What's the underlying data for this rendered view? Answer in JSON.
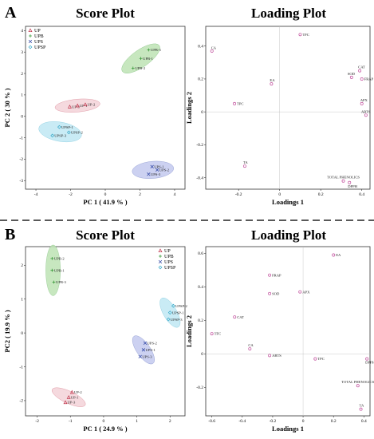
{
  "colors": {
    "UP": "#c0334a",
    "UPB": "#3a9a3a",
    "UPS": "#3a4fa8",
    "UPSP": "#35a8c8",
    "UP_fill": "#f3d2d8",
    "UPB_fill": "#bde3b4",
    "UPS_fill": "#c3c9ee",
    "UPSP_fill": "#bfe8f3",
    "loading_marker": "#c04a9a",
    "divider": "#222222"
  },
  "panel_A": {
    "letter": "A"
  },
  "panel_B": {
    "letter": "B"
  },
  "chart_data": [
    {
      "id": "A_score",
      "type": "scatter",
      "title": "Score Plot",
      "xlabel": "PC 1 ( 41.9 % )",
      "ylabel": "PC 2 ( 30 % )",
      "xlim": [
        -4.6,
        4.6
      ],
      "ylim": [
        -3.4,
        4.2
      ],
      "xticks": [
        -4,
        -2,
        0,
        2,
        4
      ],
      "yticks": [
        -3,
        -2,
        -1,
        0,
        1,
        2,
        3,
        4
      ],
      "legend": [
        "UP",
        "UPB",
        "UPS",
        "UPSP"
      ],
      "legend_position": "top-left",
      "series": [
        {
          "name": "UP",
          "points": [
            {
              "label": "UP-3",
              "x": -2.05,
              "y": 0.45
            },
            {
              "label": "UP-1",
              "x": -1.6,
              "y": 0.5
            },
            {
              "label": "UP-2",
              "x": -1.15,
              "y": 0.55
            }
          ],
          "ellipse": {
            "cx": -1.6,
            "cy": 0.5,
            "rx": 1.3,
            "ry": 0.3,
            "angle": 5
          }
        },
        {
          "name": "UPB",
          "points": [
            {
              "label": "UPB-3",
              "x": 2.5,
              "y": 3.1
            },
            {
              "label": "UPB-1",
              "x": 2.05,
              "y": 2.7
            },
            {
              "label": "UPB-2",
              "x": 1.6,
              "y": 2.25
            }
          ],
          "ellipse": {
            "cx": 2.05,
            "cy": 2.7,
            "rx": 1.3,
            "ry": 0.4,
            "angle": 35
          }
        },
        {
          "name": "UPS",
          "points": [
            {
              "label": "UPS-1",
              "x": 2.7,
              "y": -2.35
            },
            {
              "label": "UPS-2",
              "x": 3.0,
              "y": -2.5
            },
            {
              "label": "UPS-3",
              "x": 2.5,
              "y": -2.7
            }
          ],
          "ellipse": {
            "cx": 2.75,
            "cy": -2.5,
            "rx": 1.2,
            "ry": 0.4,
            "angle": 5
          }
        },
        {
          "name": "UPSP",
          "points": [
            {
              "label": "UPSP-1",
              "x": -2.65,
              "y": -0.5
            },
            {
              "label": "UPSP-2",
              "x": -2.1,
              "y": -0.75
            },
            {
              "label": "UPSP-3",
              "x": -3.05,
              "y": -0.9
            }
          ],
          "ellipse": {
            "cx": -2.6,
            "cy": -0.72,
            "rx": 1.25,
            "ry": 0.45,
            "angle": -10
          }
        }
      ]
    },
    {
      "id": "A_loading",
      "type": "scatter",
      "title": "Loading Plot",
      "xlabel": "Loadings 1",
      "ylabel": "Loadings 2",
      "xlim": [
        -0.36,
        0.44
      ],
      "ylim": [
        -0.47,
        0.52
      ],
      "xticks": [
        -0.2,
        0.0,
        0.2,
        0.4
      ],
      "yticks": [
        -0.4,
        -0.2,
        0.0,
        0.2,
        0.4
      ],
      "points": [
        {
          "label": "TFC",
          "x": 0.1,
          "y": 0.47
        },
        {
          "label": "CA",
          "x": -0.33,
          "y": 0.37
        },
        {
          "label": "CAT",
          "x": 0.39,
          "y": 0.25
        },
        {
          "label": "SOD",
          "x": 0.35,
          "y": 0.21
        },
        {
          "label": "FRAP",
          "x": 0.4,
          "y": 0.2
        },
        {
          "label": "EA",
          "x": -0.04,
          "y": 0.17
        },
        {
          "label": "TPC",
          "x": -0.22,
          "y": 0.05
        },
        {
          "label": "APX",
          "x": 0.4,
          "y": 0.05
        },
        {
          "label": "ABTS",
          "x": 0.42,
          "y": -0.02
        },
        {
          "label": "TA",
          "x": -0.17,
          "y": -0.33
        },
        {
          "label": "TOTAL PHENOLICS",
          "x": 0.31,
          "y": -0.42
        },
        {
          "label": "DPPH",
          "x": 0.34,
          "y": -0.43
        }
      ]
    },
    {
      "id": "B_score",
      "type": "scatter",
      "title": "Score Plot",
      "xlabel": "PC 1 ( 24.9 % )",
      "ylabel": "PC2 ( 19.9 % )",
      "xlim": [
        -2.35,
        2.45
      ],
      "ylim": [
        -2.45,
        2.55
      ],
      "xticks": [
        -2,
        -1,
        0,
        1,
        2
      ],
      "yticks": [
        -2,
        -1,
        0,
        1,
        2
      ],
      "legend": [
        "UP",
        "UPB",
        "UPS",
        "UPSP"
      ],
      "legend_position": "top-right",
      "series": [
        {
          "name": "UP",
          "points": [
            {
              "label": "UP-2",
              "x": -0.95,
              "y": -1.75
            },
            {
              "label": "UP-1",
              "x": -1.05,
              "y": -1.9
            },
            {
              "label": "UP-3",
              "x": -1.15,
              "y": -2.05
            }
          ],
          "ellipse": {
            "cx": -1.05,
            "cy": -1.9,
            "rx": 0.55,
            "ry": 0.18,
            "angle": -25
          }
        },
        {
          "name": "UPB",
          "points": [
            {
              "label": "UPB-2",
              "x": -1.55,
              "y": 2.2
            },
            {
              "label": "UPB-1",
              "x": -1.55,
              "y": 1.85
            },
            {
              "label": "UPB-3",
              "x": -1.5,
              "y": 1.5
            }
          ],
          "ellipse": {
            "cx": -1.52,
            "cy": 1.85,
            "rx": 0.22,
            "ry": 0.75,
            "angle": 0
          }
        },
        {
          "name": "UPS",
          "points": [
            {
              "label": "UPS-2",
              "x": 1.25,
              "y": -0.3
            },
            {
              "label": "UPS-1",
              "x": 1.2,
              "y": -0.5
            },
            {
              "label": "UPS-3",
              "x": 1.1,
              "y": -0.7
            }
          ],
          "ellipse": {
            "cx": 1.2,
            "cy": -0.5,
            "rx": 0.5,
            "ry": 0.2,
            "angle": -55
          }
        },
        {
          "name": "UPSP",
          "points": [
            {
              "label": "UPSP-2",
              "x": 2.1,
              "y": 0.8
            },
            {
              "label": "UPSP-1",
              "x": 2.0,
              "y": 0.6
            },
            {
              "label": "UPSP-3",
              "x": 1.95,
              "y": 0.4
            }
          ],
          "ellipse": {
            "cx": 2.0,
            "cy": 0.6,
            "rx": 0.5,
            "ry": 0.2,
            "angle": -60
          }
        }
      ]
    },
    {
      "id": "B_loading",
      "type": "scatter",
      "title": "Loading Plot",
      "xlabel": "Loadings 1",
      "ylabel": "Loadings 2",
      "xlim": [
        -0.64,
        0.44
      ],
      "ylim": [
        -0.37,
        0.64
      ],
      "xticks": [
        -0.6,
        -0.4,
        -0.2,
        0.0,
        0.2,
        0.4
      ],
      "yticks": [
        -0.2,
        0.0,
        0.2,
        0.4,
        0.6
      ],
      "points": [
        {
          "label": "EA",
          "x": 0.2,
          "y": 0.59
        },
        {
          "label": "FRAP",
          "x": -0.22,
          "y": 0.47
        },
        {
          "label": "APX",
          "x": -0.02,
          "y": 0.37
        },
        {
          "label": "SOD",
          "x": -0.22,
          "y": 0.36
        },
        {
          "label": "CAT",
          "x": -0.45,
          "y": 0.22
        },
        {
          "label": "TFC",
          "x": -0.6,
          "y": 0.12
        },
        {
          "label": "CA",
          "x": -0.35,
          "y": 0.03
        },
        {
          "label": "ABTS",
          "x": -0.22,
          "y": -0.01
        },
        {
          "label": "TPC",
          "x": 0.08,
          "y": -0.03
        },
        {
          "label": "DPPH",
          "x": 0.42,
          "y": -0.03
        },
        {
          "label": "TOTAL PHENOLICS",
          "x": 0.36,
          "y": -0.19
        },
        {
          "label": "TA",
          "x": 0.38,
          "y": -0.33
        }
      ]
    }
  ]
}
